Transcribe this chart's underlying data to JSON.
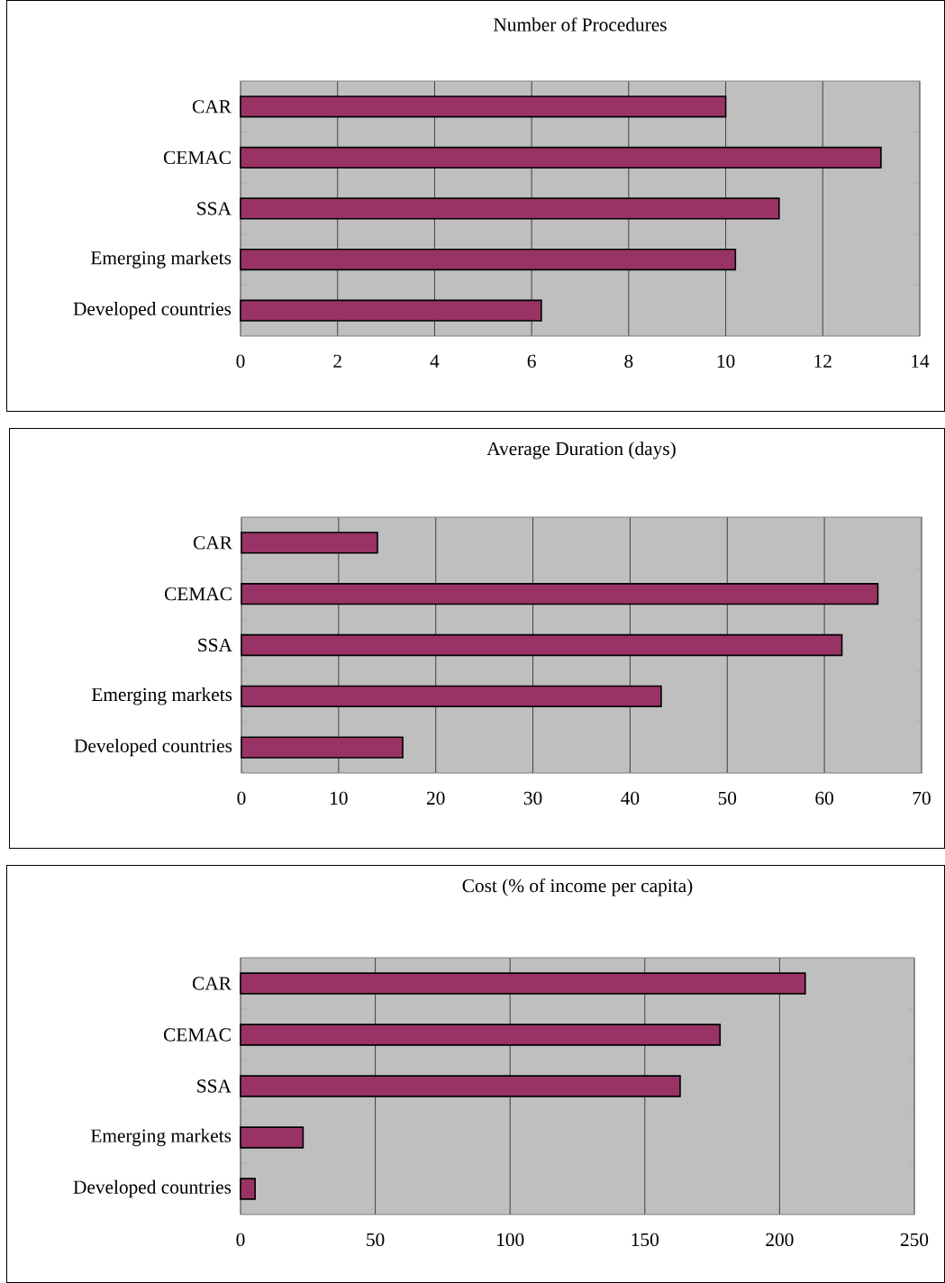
{
  "chart_data": [
    {
      "type": "bar",
      "orientation": "horizontal",
      "title": "Number of Procedures",
      "categories": [
        "CAR",
        "CEMAC",
        "SSA",
        "Emerging markets",
        "Developed countries"
      ],
      "values": [
        10,
        13.2,
        11.1,
        10.2,
        6.2
      ],
      "color": "#993366",
      "xlim": [
        0,
        14
      ],
      "xticks": [
        0,
        2,
        4,
        6,
        8,
        10,
        12,
        14
      ],
      "grid": "x"
    },
    {
      "type": "bar",
      "orientation": "horizontal",
      "title": "Average Duration (days)",
      "categories": [
        "CAR",
        "CEMAC",
        "SSA",
        "Emerging markets",
        "Developed countries"
      ],
      "values": [
        14,
        65.5,
        61.8,
        43.2,
        16.6
      ],
      "color": "#993366",
      "xlim": [
        0,
        70
      ],
      "xticks": [
        0,
        10,
        20,
        30,
        40,
        50,
        60,
        70
      ],
      "grid": "x"
    },
    {
      "type": "bar",
      "orientation": "horizontal",
      "title": "Cost (% of income per capita)",
      "categories": [
        "CAR",
        "CEMAC",
        "SSA",
        "Emerging markets",
        "Developed countries"
      ],
      "values": [
        209.5,
        177.9,
        163.1,
        23.2,
        5.4
      ],
      "color": "#993366",
      "xlim": [
        0,
        250
      ],
      "xticks": [
        0,
        50,
        100,
        150,
        200,
        250
      ],
      "grid": "x"
    }
  ]
}
